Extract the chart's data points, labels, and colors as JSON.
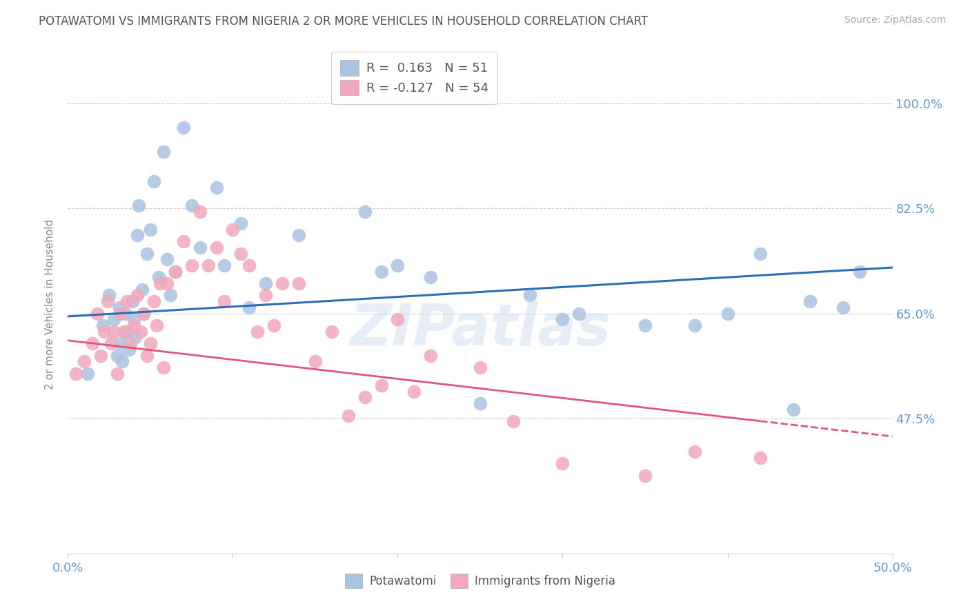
{
  "title": "POTAWATOMI VS IMMIGRANTS FROM NIGERIA 2 OR MORE VEHICLES IN HOUSEHOLD CORRELATION CHART",
  "source": "Source: ZipAtlas.com",
  "ylabel": "2 or more Vehicles in Household",
  "xlim": [
    0.0,
    50.0
  ],
  "ylim": [
    25.0,
    108.0
  ],
  "yticks": [
    47.5,
    65.0,
    82.5,
    100.0
  ],
  "xticks_positions": [
    0.0,
    10.0,
    20.0,
    30.0,
    40.0,
    50.0
  ],
  "xticks_labels_show": [
    "0.0%",
    "",
    "",
    "",
    "",
    "50.0%"
  ],
  "blue_color": "#aac4e0",
  "pink_color": "#f0a8bc",
  "blue_line_color": "#2f6db5",
  "pink_line_color": "#e0557a",
  "axis_label_color": "#6699cc",
  "grid_color": "#cccccc",
  "background_color": "#ffffff",
  "watermark": "ZIPatlas",
  "blue_R": 0.163,
  "blue_N": 51,
  "pink_R": -0.127,
  "pink_N": 54,
  "blue_x": [
    1.2,
    2.1,
    2.5,
    2.8,
    3.0,
    3.1,
    3.2,
    3.3,
    3.5,
    3.6,
    3.7,
    3.9,
    4.0,
    4.1,
    4.2,
    4.3,
    4.5,
    4.6,
    4.8,
    5.0,
    5.2,
    5.5,
    5.8,
    6.0,
    6.2,
    6.5,
    7.0,
    7.5,
    8.0,
    9.0,
    9.5,
    10.5,
    11.0,
    12.0,
    14.0,
    18.0,
    19.0,
    20.0,
    22.0,
    25.0,
    28.0,
    30.0,
    31.0,
    35.0,
    38.0,
    40.0,
    42.0,
    44.0,
    45.0,
    47.0,
    48.0
  ],
  "blue_y": [
    55.0,
    63.0,
    68.0,
    64.0,
    58.0,
    66.0,
    60.0,
    57.0,
    65.0,
    62.0,
    59.0,
    67.0,
    64.0,
    61.0,
    78.0,
    83.0,
    69.0,
    65.0,
    75.0,
    79.0,
    87.0,
    71.0,
    92.0,
    74.0,
    68.0,
    72.0,
    96.0,
    83.0,
    76.0,
    86.0,
    73.0,
    80.0,
    66.0,
    70.0,
    78.0,
    82.0,
    72.0,
    73.0,
    71.0,
    50.0,
    68.0,
    64.0,
    65.0,
    63.0,
    63.0,
    65.0,
    75.0,
    49.0,
    67.0,
    66.0,
    72.0
  ],
  "pink_x": [
    0.5,
    1.0,
    1.5,
    1.8,
    2.0,
    2.2,
    2.4,
    2.6,
    2.8,
    3.0,
    3.2,
    3.4,
    3.6,
    3.8,
    4.0,
    4.2,
    4.4,
    4.6,
    4.8,
    5.0,
    5.2,
    5.4,
    5.6,
    5.8,
    6.0,
    6.5,
    7.0,
    7.5,
    8.0,
    8.5,
    9.0,
    9.5,
    10.0,
    10.5,
    11.0,
    11.5,
    12.0,
    12.5,
    13.0,
    14.0,
    15.0,
    16.0,
    17.0,
    18.0,
    19.0,
    20.0,
    21.0,
    22.0,
    25.0,
    27.0,
    30.0,
    35.0,
    38.0,
    42.0
  ],
  "pink_y": [
    55.0,
    57.0,
    60.0,
    65.0,
    58.0,
    62.0,
    67.0,
    60.0,
    62.0,
    55.0,
    65.0,
    62.0,
    67.0,
    60.0,
    63.0,
    68.0,
    62.0,
    65.0,
    58.0,
    60.0,
    67.0,
    63.0,
    70.0,
    56.0,
    70.0,
    72.0,
    77.0,
    73.0,
    82.0,
    73.0,
    76.0,
    67.0,
    79.0,
    75.0,
    73.0,
    62.0,
    68.0,
    63.0,
    70.0,
    70.0,
    57.0,
    62.0,
    48.0,
    51.0,
    53.0,
    64.0,
    52.0,
    58.0,
    56.0,
    47.0,
    40.0,
    38.0,
    42.0,
    41.0
  ],
  "pink_solid_end_x": 42.0,
  "blue_line_intercept": 64.5,
  "blue_line_slope": 0.163,
  "pink_line_intercept": 60.5,
  "pink_line_slope": -0.32
}
